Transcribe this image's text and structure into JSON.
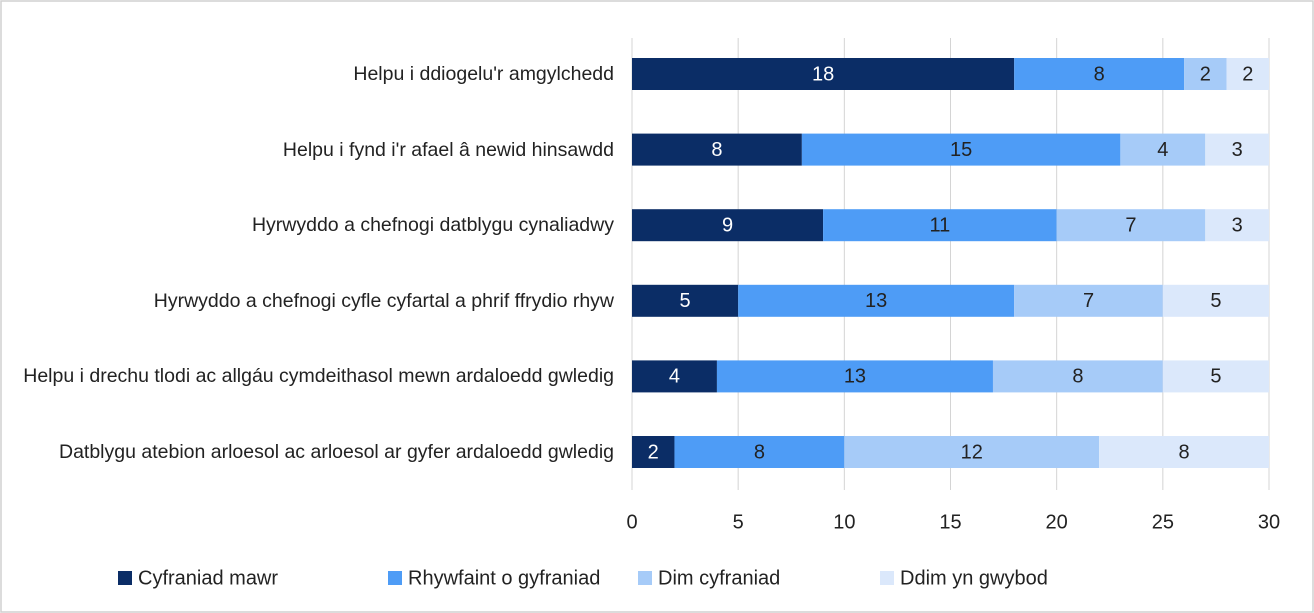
{
  "chart_data": {
    "type": "stacked_barh",
    "categories": [
      "Helpu i ddiogelu'r amgylchedd",
      "Helpu i fynd i'r afael â newid hinsawdd",
      "Hyrwyddo a chefnogi datblygu cynaliadwy",
      "Hyrwyddo a chefnogi cyfle cyfartal a phrif ffrydio rhyw",
      "Helpu i drechu tlodi ac allgáu cymdeithasol mewn ardaloedd gwledig",
      "Datblygu atebion arloesol ac arloesol ar gyfer ardaloedd gwledig"
    ],
    "series": [
      {
        "name": "Cyfraniad mawr",
        "color": "#0b2d66",
        "values": [
          18,
          8,
          9,
          5,
          4,
          2
        ]
      },
      {
        "name": "Rhywfaint o gyfraniad",
        "color": "#4e9cf6",
        "values": [
          8,
          15,
          11,
          13,
          13,
          8
        ]
      },
      {
        "name": "Dim cyfraniad",
        "color": "#a6cbf8",
        "values": [
          2,
          4,
          7,
          7,
          8,
          12
        ]
      },
      {
        "name": "Ddim yn gwybod",
        "color": "#dbe8fb",
        "values": [
          2,
          3,
          3,
          5,
          5,
          8
        ]
      }
    ],
    "xlim": [
      0,
      30
    ],
    "xticks": [
      0,
      5,
      10,
      15,
      20,
      25,
      30
    ],
    "grid": true,
    "legend": "bottom"
  }
}
